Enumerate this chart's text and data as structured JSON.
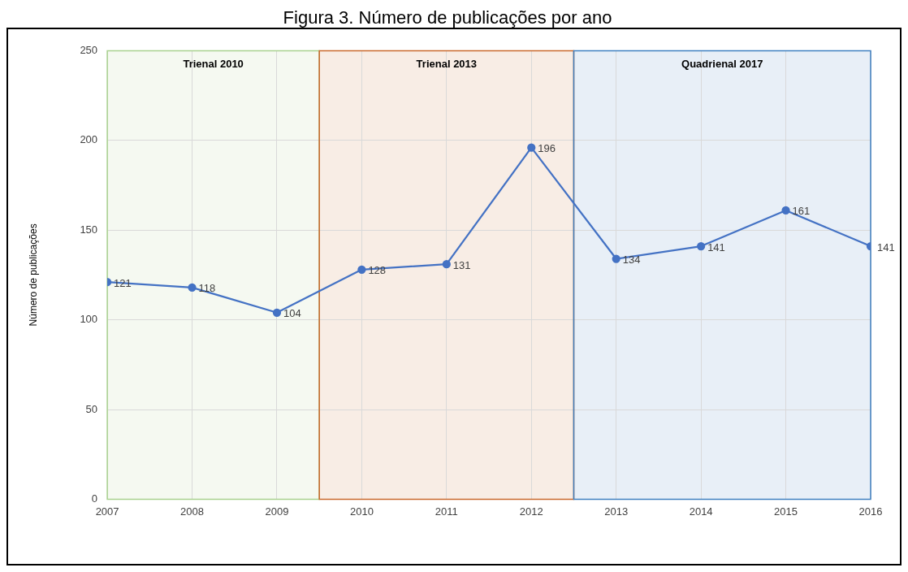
{
  "chart_data": {
    "type": "line",
    "title": "Figura 3. Número de publicações por ano",
    "ylabel": "Número de publicações",
    "x": [
      2007,
      2008,
      2009,
      2010,
      2011,
      2012,
      2013,
      2014,
      2015,
      2016
    ],
    "series": [
      {
        "color": "#4472c4",
        "values": [
          121,
          118,
          104,
          128,
          131,
          196,
          134,
          141,
          161,
          141
        ]
      }
    ],
    "xlim": [
      2007,
      2016
    ],
    "xticks": [
      2007,
      2008,
      2009,
      2010,
      2011,
      2012,
      2013,
      2014,
      2015,
      2016
    ],
    "ylim": [
      0,
      250
    ],
    "yticks": [
      0,
      50,
      100,
      150,
      200,
      250
    ],
    "bands": [
      {
        "axis": "x",
        "from": 2007,
        "to": 2009.5,
        "label": "Trienal 2010",
        "color": "#a9d18e"
      },
      {
        "axis": "x",
        "from": 2009.5,
        "to": 2012.5,
        "label": "Trienal 2013",
        "color": "#c9682c"
      },
      {
        "axis": "x",
        "from": 2012.5,
        "to": 2016,
        "label": "Quadrienal 2017",
        "color": "#3f7fc0"
      }
    ],
    "grid": true,
    "legend": false,
    "marker": "circle",
    "line_style": "solid",
    "data_labels": true
  }
}
